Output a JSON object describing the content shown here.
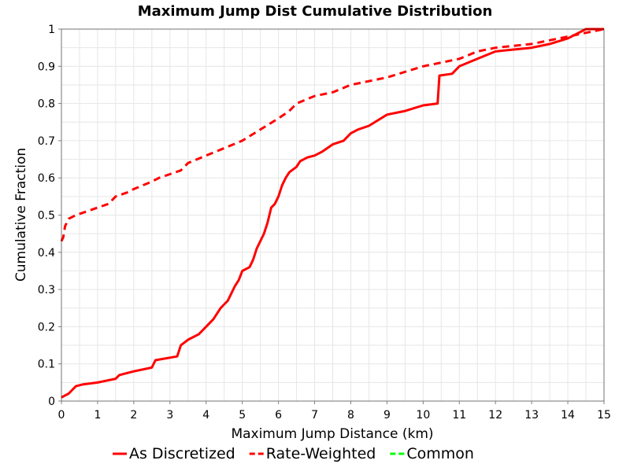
{
  "chart_data": {
    "type": "line",
    "title": "Maximum Jump Dist Cumulative Distribution",
    "xlabel": "Maximum Jump Distance (km)",
    "ylabel": "Cumulative Fraction",
    "xlim": [
      0,
      15
    ],
    "ylim": [
      0,
      1
    ],
    "x_ticks": [
      "0",
      "1",
      "2",
      "3",
      "4",
      "5",
      "6",
      "7",
      "8",
      "9",
      "10",
      "11",
      "12",
      "13",
      "14",
      "15"
    ],
    "y_ticks": [
      "0",
      "0.1",
      "0.2",
      "0.3",
      "0.4",
      "0.5",
      "0.6",
      "0.7",
      "0.8",
      "0.9",
      "1"
    ],
    "grid": true,
    "legend_position": "bottom",
    "series": [
      {
        "name": "As Discretized",
        "color": "#ff0000",
        "dash": "solid",
        "x": [
          0,
          0.2,
          0.4,
          0.6,
          1.0,
          1.5,
          1.6,
          2.0,
          2.5,
          2.6,
          3.2,
          3.3,
          3.5,
          3.8,
          4.0,
          4.2,
          4.4,
          4.5,
          4.6,
          4.7,
          4.8,
          4.9,
          5.0,
          5.2,
          5.3,
          5.4,
          5.5,
          5.6,
          5.7,
          5.8,
          5.9,
          6.0,
          6.1,
          6.2,
          6.3,
          6.5,
          6.6,
          6.8,
          7.0,
          7.2,
          7.5,
          7.8,
          8.0,
          8.2,
          8.5,
          9.0,
          9.5,
          10.0,
          10.4,
          10.45,
          10.8,
          11.0,
          11.5,
          12.0,
          12.5,
          13.0,
          13.5,
          14.0,
          14.2,
          14.5,
          15.0
        ],
        "y": [
          0.01,
          0.02,
          0.04,
          0.045,
          0.05,
          0.06,
          0.07,
          0.08,
          0.09,
          0.11,
          0.12,
          0.15,
          0.165,
          0.18,
          0.2,
          0.22,
          0.25,
          0.26,
          0.27,
          0.29,
          0.31,
          0.325,
          0.35,
          0.36,
          0.38,
          0.41,
          0.43,
          0.45,
          0.48,
          0.52,
          0.53,
          0.55,
          0.58,
          0.6,
          0.615,
          0.63,
          0.645,
          0.655,
          0.66,
          0.67,
          0.69,
          0.7,
          0.72,
          0.73,
          0.74,
          0.77,
          0.78,
          0.795,
          0.8,
          0.875,
          0.88,
          0.9,
          0.92,
          0.94,
          0.945,
          0.95,
          0.96,
          0.975,
          0.985,
          1.0,
          1.0
        ]
      },
      {
        "name": "Rate-Weighted",
        "color": "#ff0000",
        "dash": "dashed",
        "x": [
          0,
          0.05,
          0.1,
          0.2,
          0.4,
          0.7,
          1.0,
          1.3,
          1.5,
          1.8,
          2.0,
          2.5,
          2.7,
          3.0,
          3.3,
          3.5,
          4.0,
          4.5,
          5.0,
          5.5,
          6.0,
          6.3,
          6.5,
          7.0,
          7.5,
          8.0,
          8.5,
          9.0,
          10.0,
          10.5,
          11.0,
          11.5,
          12.0,
          13.0,
          13.5,
          14.0,
          14.5,
          15.0
        ],
        "y": [
          0.43,
          0.44,
          0.47,
          0.49,
          0.5,
          0.51,
          0.52,
          0.53,
          0.55,
          0.56,
          0.57,
          0.59,
          0.6,
          0.61,
          0.62,
          0.64,
          0.66,
          0.68,
          0.7,
          0.73,
          0.76,
          0.78,
          0.8,
          0.82,
          0.83,
          0.85,
          0.86,
          0.87,
          0.9,
          0.91,
          0.92,
          0.94,
          0.95,
          0.96,
          0.97,
          0.98,
          0.99,
          1.0
        ]
      },
      {
        "name": "Common",
        "color": "#00ff00",
        "dash": "dashed",
        "x": [],
        "y": []
      }
    ]
  }
}
